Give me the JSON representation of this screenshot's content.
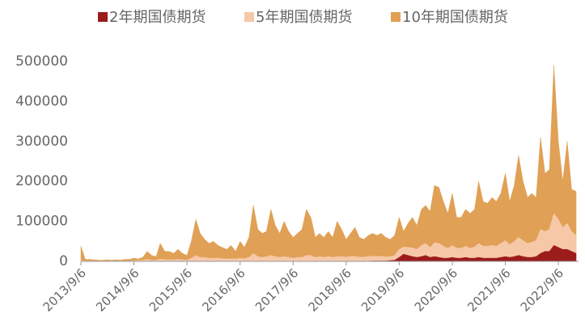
{
  "chart_data": {
    "type": "stacked-area",
    "x": [
      "2013/9/6",
      "2013/10/6",
      "2013/11/6",
      "2013/12/6",
      "2014/1/6",
      "2014/2/6",
      "2014/3/6",
      "2014/4/6",
      "2014/5/6",
      "2014/6/6",
      "2014/7/6",
      "2014/8/6",
      "2014/9/6",
      "2014/10/6",
      "2014/11/6",
      "2014/12/6",
      "2015/1/6",
      "2015/2/6",
      "2015/3/6",
      "2015/4/6",
      "2015/5/6",
      "2015/6/6",
      "2015/7/6",
      "2015/8/6",
      "2015/9/6",
      "2015/10/6",
      "2015/11/6",
      "2015/12/6",
      "2016/1/6",
      "2016/2/6",
      "2016/3/6",
      "2016/4/6",
      "2016/5/6",
      "2016/6/6",
      "2016/7/6",
      "2016/8/6",
      "2016/9/6",
      "2016/10/6",
      "2016/11/6",
      "2016/12/6",
      "2017/1/6",
      "2017/2/6",
      "2017/3/6",
      "2017/4/6",
      "2017/5/6",
      "2017/6/6",
      "2017/7/6",
      "2017/8/6",
      "2017/9/6",
      "2017/10/6",
      "2017/11/6",
      "2017/12/6",
      "2018/1/6",
      "2018/2/6",
      "2018/3/6",
      "2018/4/6",
      "2018/5/6",
      "2018/6/6",
      "2018/7/6",
      "2018/8/6",
      "2018/9/6",
      "2018/10/6",
      "2018/11/6",
      "2018/12/6",
      "2019/1/6",
      "2019/2/6",
      "2019/3/6",
      "2019/4/6",
      "2019/5/6",
      "2019/6/6",
      "2019/7/6",
      "2019/8/6",
      "2019/9/6",
      "2019/10/6",
      "2019/11/6",
      "2019/12/6",
      "2020/1/6",
      "2020/2/6",
      "2020/3/6",
      "2020/4/6",
      "2020/5/6",
      "2020/6/6",
      "2020/7/6",
      "2020/8/6",
      "2020/9/6",
      "2020/10/6",
      "2020/11/6",
      "2020/12/6",
      "2021/1/6",
      "2021/2/6",
      "2021/3/6",
      "2021/4/6",
      "2021/5/6",
      "2021/6/6",
      "2021/7/6",
      "2021/8/6",
      "2021/9/6",
      "2021/10/6",
      "2021/11/6",
      "2021/12/6",
      "2022/1/6",
      "2022/2/6",
      "2022/3/6",
      "2022/4/6",
      "2022/5/6",
      "2022/6/6",
      "2022/7/6",
      "2022/8/6",
      "2022/9/6",
      "2022/10/6",
      "2022/11/6",
      "2022/12/6",
      "2023/1/6"
    ],
    "series": [
      {
        "name": "2年期国债期货",
        "color": "#9c1c1c",
        "values": [
          0,
          0,
          0,
          0,
          0,
          0,
          0,
          0,
          0,
          0,
          0,
          0,
          0,
          0,
          0,
          0,
          0,
          0,
          0,
          0,
          0,
          0,
          0,
          0,
          0,
          0,
          0,
          0,
          0,
          0,
          0,
          0,
          0,
          0,
          0,
          0,
          0,
          0,
          0,
          0,
          0,
          0,
          0,
          0,
          0,
          0,
          0,
          0,
          0,
          0,
          0,
          0,
          0,
          0,
          0,
          0,
          0,
          0,
          0,
          500,
          500,
          500,
          500,
          500,
          500,
          500,
          1000,
          1000,
          1000,
          1000,
          2000,
          3000,
          10000,
          18000,
          15000,
          12000,
          10000,
          12000,
          15000,
          10000,
          12000,
          10000,
          8000,
          8000,
          10000,
          8000,
          8000,
          10000,
          8000,
          8000,
          10000,
          8000,
          8000,
          8000,
          8000,
          10000,
          12000,
          10000,
          12000,
          15000,
          12000,
          10000,
          10000,
          12000,
          20000,
          25000,
          25000,
          40000,
          35000,
          30000,
          30000,
          25000,
          20000
        ]
      },
      {
        "name": "5年期国债期货",
        "color": "#f6c8a8",
        "values": [
          2000,
          1000,
          1000,
          1000,
          1000,
          1000,
          1000,
          1000,
          1000,
          1000,
          1000,
          1000,
          2000,
          2000,
          3000,
          5000,
          3000,
          3000,
          6000,
          4000,
          4000,
          4000,
          5000,
          4000,
          3000,
          8000,
          15000,
          10000,
          10000,
          8000,
          8000,
          8000,
          7000,
          6000,
          7000,
          6000,
          8000,
          7000,
          10000,
          20000,
          12000,
          10000,
          12000,
          15000,
          12000,
          10000,
          12000,
          10000,
          8000,
          10000,
          10000,
          15000,
          15000,
          10000,
          12000,
          10000,
          12000,
          10000,
          12000,
          12000,
          10000,
          12000,
          12000,
          10000,
          10000,
          12000,
          12000,
          12000,
          12000,
          10000,
          10000,
          12000,
          20000,
          18000,
          20000,
          22000,
          20000,
          28000,
          30000,
          25000,
          35000,
          35000,
          30000,
          25000,
          30000,
          25000,
          25000,
          28000,
          25000,
          28000,
          35000,
          30000,
          30000,
          32000,
          30000,
          35000,
          40000,
          32000,
          38000,
          45000,
          40000,
          35000,
          38000,
          40000,
          60000,
          50000,
          55000,
          80000,
          70000,
          55000,
          65000,
          50000,
          45000
        ]
      },
      {
        "name": "10年期国债期货",
        "color": "#e0a055",
        "values": [
          36000,
          4000,
          4000,
          3000,
          2000,
          2000,
          3000,
          2000,
          3000,
          2000,
          4000,
          4000,
          6000,
          4000,
          7000,
          20000,
          12000,
          9000,
          39000,
          21000,
          21000,
          16000,
          25000,
          16000,
          12000,
          42000,
          90000,
          60000,
          45000,
          37000,
          42000,
          32000,
          28000,
          24000,
          33000,
          19000,
          42000,
          28000,
          50000,
          120000,
          68000,
          60000,
          63000,
          115000,
          78000,
          60000,
          88000,
          65000,
          52000,
          60000,
          70000,
          115000,
          95000,
          50000,
          58000,
          50000,
          63000,
          50000,
          88000,
          67500,
          44500,
          57500,
          72500,
          49500,
          44500,
          52500,
          57000,
          52000,
          57000,
          49000,
          43000,
          50000,
          80000,
          39000,
          60000,
          76000,
          60000,
          90000,
          95000,
          90000,
          143000,
          140000,
          112000,
          87000,
          130000,
          77000,
          77000,
          92000,
          87000,
          94000,
          155000,
          112000,
          107000,
          120000,
          112000,
          125000,
          168000,
          108000,
          140000,
          205000,
          148000,
          115000,
          122000,
          108000,
          230000,
          145000,
          150000,
          370000,
          195000,
          115000,
          205000,
          105000,
          110000
        ]
      }
    ],
    "xlim": [
      "2013/9/6",
      "2023/1/6"
    ],
    "xticks": [
      "2013/9/6",
      "2014/9/6",
      "2015/9/6",
      "2016/9/6",
      "2017/9/6",
      "2018/9/6",
      "2019/9/6",
      "2020/9/6",
      "2021/9/6",
      "2022/9/6"
    ],
    "ylim": [
      0,
      500000
    ],
    "yticks": [
      0,
      100000,
      200000,
      300000,
      400000,
      500000
    ],
    "stacked": true,
    "legend": "top"
  }
}
